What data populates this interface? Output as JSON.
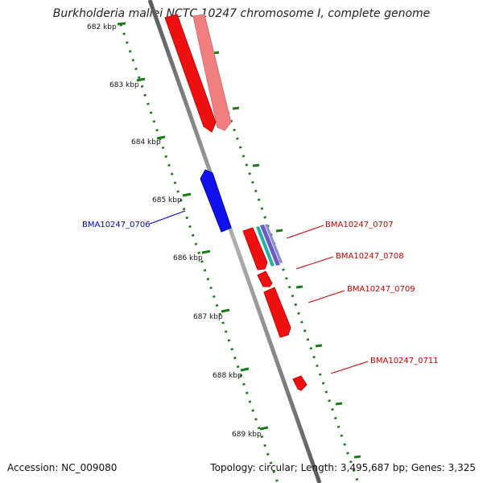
{
  "title": "Burkholderia mallei NCTC 10247 chromosome I, complete genome",
  "footer": {
    "accession": "Accession: NC_009080",
    "topology": "Topology: circular; Length: 3,495,687 bp; Genes: 3,325"
  },
  "scale": {
    "unit": "kbp",
    "labels": [
      "682 kbp",
      "683 kbp",
      "684 kbp",
      "685 kbp",
      "686 kbp",
      "687 kbp",
      "688 kbp",
      "689 kbp"
    ]
  },
  "genes": [
    {
      "name": "BMA10247_0706",
      "color": "#0000cc",
      "strand": "minus"
    },
    {
      "name": "BMA10247_0707",
      "color": "#cc0000",
      "strand": "plus"
    },
    {
      "name": "BMA10247_0708",
      "color": "#cc0000",
      "strand": "plus"
    },
    {
      "name": "BMA10247_0709",
      "color": "#cc0000",
      "strand": "plus"
    },
    {
      "name": "BMA10247_0711",
      "color": "#cc0000",
      "strand": "plus"
    }
  ],
  "colors": {
    "backbone": "#8a8a8a",
    "tick": "#1a7a1a",
    "forward_cds": "#ee1111",
    "reverse_cds": "#1111ee",
    "forward_cds_light": "#f08080",
    "rna": "#20b2aa",
    "misc_feature": "#6a5acd"
  }
}
